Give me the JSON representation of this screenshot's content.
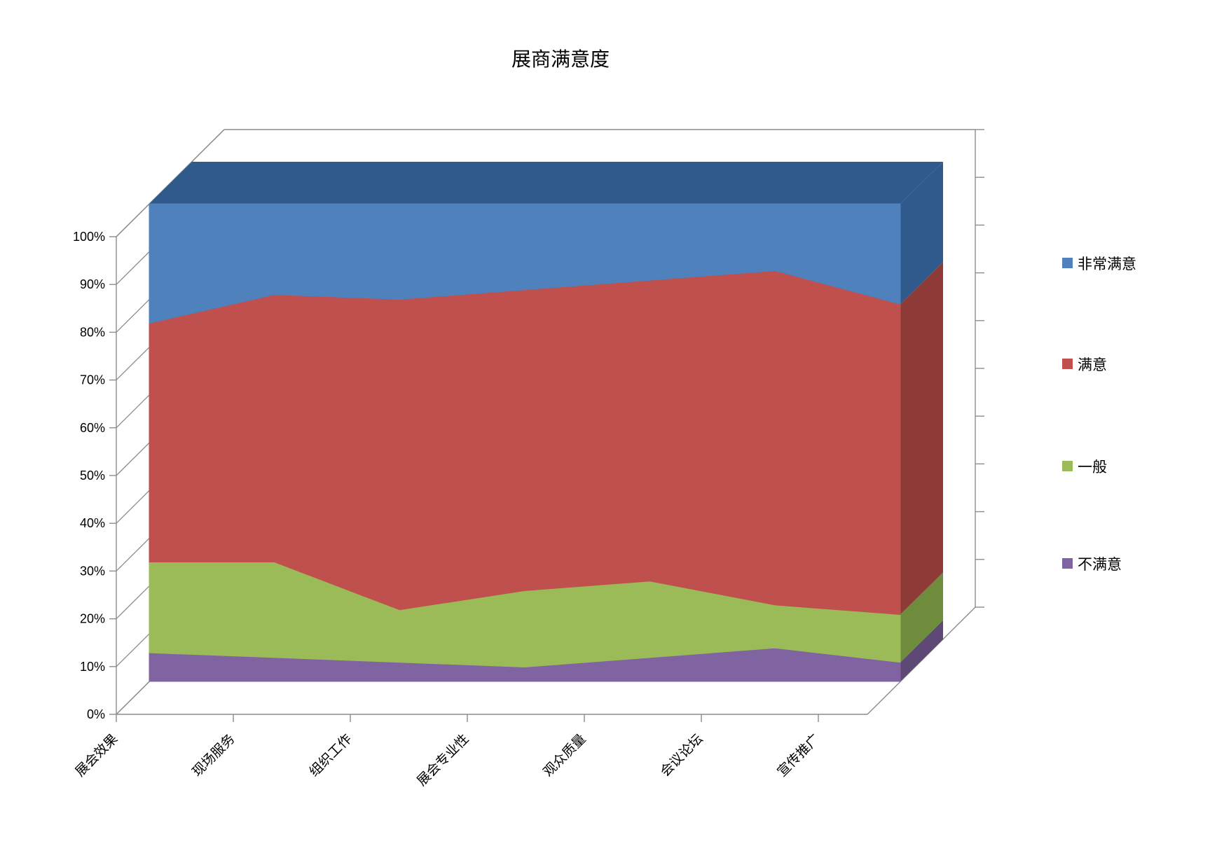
{
  "page": {
    "background": "#FFFFFF"
  },
  "chart_data": {
    "type": "area",
    "variant": "3d-stacked-percent-area",
    "title": "展商满意度",
    "categories": [
      "展会效果",
      "现场服务",
      "组织工作",
      "展会专业性",
      "观众质量",
      "会议论坛",
      "宣传推广"
    ],
    "series": [
      {
        "name": "不满意",
        "color": "#8064A2",
        "side_color": "#5D4876",
        "values": [
          6,
          5,
          4,
          3,
          5,
          7,
          4
        ]
      },
      {
        "name": "一般",
        "color": "#9BBB59",
        "side_color": "#6F8C3C",
        "values": [
          19,
          20,
          11,
          16,
          16,
          9,
          10
        ]
      },
      {
        "name": "满意",
        "color": "#C0504D",
        "side_color": "#8E3B38",
        "values": [
          50,
          56,
          65,
          63,
          63,
          70,
          65
        ]
      },
      {
        "name": "非常满意",
        "color": "#4F81BD",
        "side_color": "#315A8C",
        "values": [
          25,
          19,
          20,
          18,
          16,
          14,
          21
        ]
      }
    ],
    "y_axis": {
      "min": 0,
      "max": 100,
      "tick_labels": [
        "0%",
        "10%",
        "20%",
        "30%",
        "40%",
        "50%",
        "60%",
        "70%",
        "80%",
        "90%",
        "100%"
      ]
    },
    "legend": {
      "position": "right",
      "items": [
        "非常满意",
        "满意",
        "一般",
        "不满意"
      ]
    },
    "gridline_color": "#8C8C8C",
    "text_color": "#000000"
  }
}
